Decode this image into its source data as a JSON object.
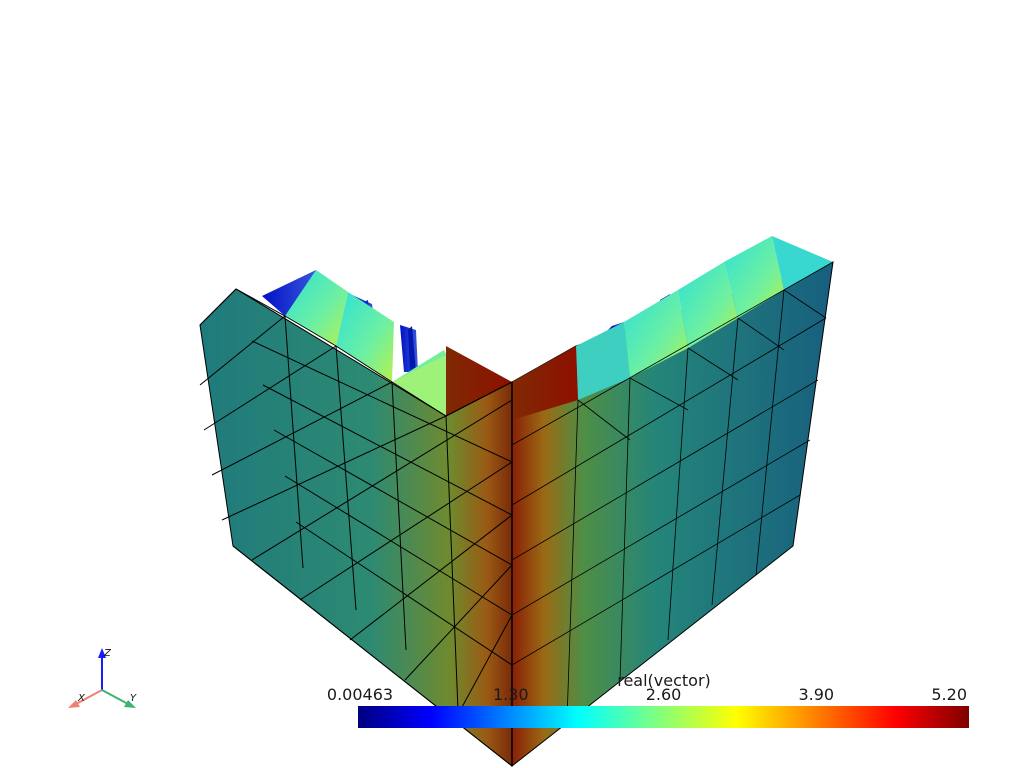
{
  "scalar_bar": {
    "title": "real(vector)",
    "colormap": "jet",
    "range": [
      0.00463,
      5.2
    ],
    "tick_labels": [
      "0.00463",
      "1.30",
      "2.60",
      "3.90",
      "5.20"
    ]
  },
  "orientation_axes": {
    "x_label": "X",
    "y_label": "Y",
    "z_label": "Z",
    "x_color": "#f08070",
    "y_color": "#3cb371",
    "z_color": "#1a1aff"
  },
  "colors": {
    "background": "#ffffff",
    "mesh_edge": "#000000"
  }
}
